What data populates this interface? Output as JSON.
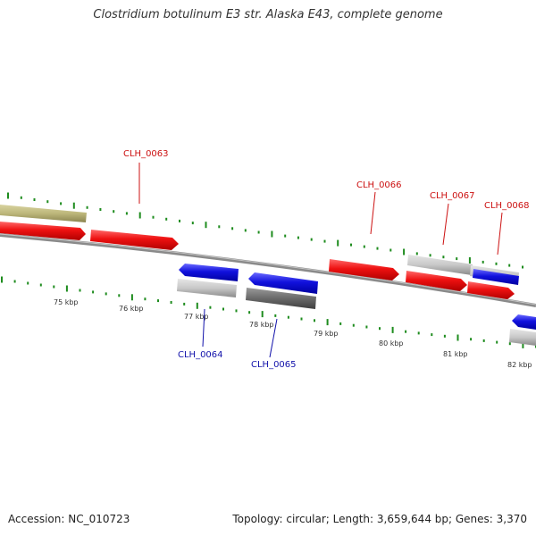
{
  "title": "Clostridium botulinum E3 str. Alaska E43, complete genome",
  "footer": {
    "accession": "Accession: NC_010723",
    "topology": "Topology: circular; Length: 3,659,644 bp; Genes: 3,370"
  },
  "colors": {
    "forward_gene": "#ee1111",
    "reverse_gene": "#1111dd",
    "forward_label": "#cc1111",
    "reverse_label": "#1111aa",
    "backbone": "#888888",
    "ticks": "#1e8c1e",
    "olive_feature": "#bdb77a"
  },
  "scale_labels": [
    "75 kbp",
    "76 kbp",
    "77 kbp",
    "78 kbp",
    "79 kbp",
    "80 kbp",
    "81 kbp",
    "82 kbp"
  ],
  "gene_labels": [
    {
      "text": "CLH_0063",
      "strand": "forward"
    },
    {
      "text": "CLH_0064",
      "strand": "reverse"
    },
    {
      "text": "CLH_0065",
      "strand": "reverse"
    },
    {
      "text": "CLH_0066",
      "strand": "forward"
    },
    {
      "text": "CLH_0067",
      "strand": "forward"
    },
    {
      "text": "CLH_0068",
      "strand": "forward"
    }
  ]
}
